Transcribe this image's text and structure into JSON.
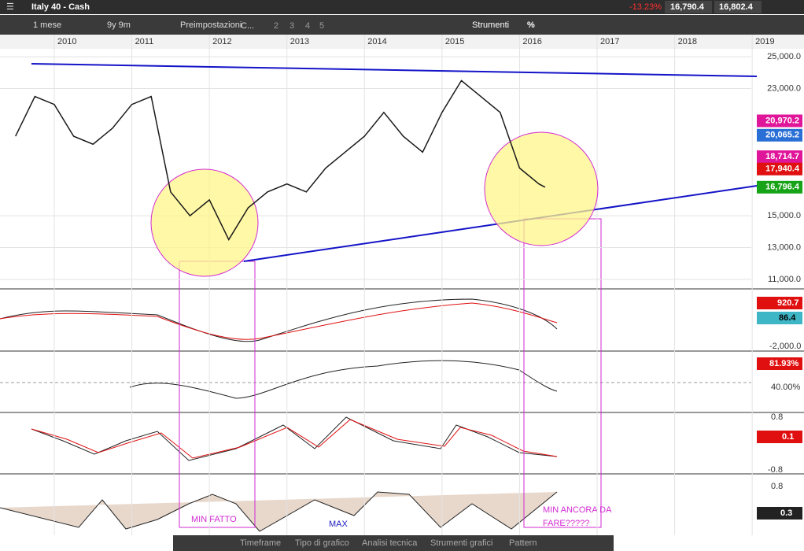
{
  "header": {
    "title": "Italy 40 - Cash",
    "change": "-13.23%",
    "bid": "16,790.4",
    "ask": "16,802.4"
  },
  "toolbar": {
    "timeframe": "1 mese",
    "range": "9y 9m",
    "presets": "Preimpostazioni",
    "chart": "C...",
    "slots": [
      "2",
      "3",
      "4",
      "5"
    ],
    "tools": "Strumenti",
    "percent": "%"
  },
  "chart_data": {
    "type": "line",
    "color": "#1a1a1a",
    "x": [
      2009.5,
      2009.75,
      2010.0,
      2010.25,
      2010.5,
      2010.75,
      2011.0,
      2011.25,
      2011.5,
      2011.75,
      2012.0,
      2012.25,
      2012.5,
      2012.75,
      2013.0,
      2013.25,
      2013.5,
      2013.75,
      2014.0,
      2014.25,
      2014.5,
      2014.75,
      2015.0,
      2015.25,
      2015.5,
      2015.75,
      2016.0,
      2016.25,
      2016.33
    ],
    "values": [
      20000,
      22500,
      22000,
      20000,
      19500,
      20500,
      22000,
      22500,
      16500,
      15000,
      16000,
      13500,
      15500,
      16500,
      17000,
      16500,
      18000,
      19000,
      20000,
      21500,
      20000,
      19000,
      21500,
      23500,
      22500,
      21500,
      18000,
      17000,
      16796.4
    ],
    "xlim": [
      2009.3,
      2019.1
    ],
    "xticks": [
      2010,
      2011,
      2012,
      2013,
      2014,
      2015,
      2016,
      2017,
      2018,
      2019
    ],
    "ylim": [
      10500,
      25500
    ],
    "yticks": [
      {
        "value": 25000,
        "label": "25,000.0"
      },
      {
        "value": 23000,
        "label": "23,000.0"
      },
      {
        "value": 15000,
        "label": "15,000.0"
      },
      {
        "value": 13000,
        "label": "13,000.0"
      },
      {
        "value": 11000,
        "label": "11,000.0"
      }
    ],
    "price_labels": [
      {
        "value": 20970.2,
        "label": "20,970.2",
        "color": "#e0169a"
      },
      {
        "value": 20065.2,
        "label": "20,065.2",
        "color": "#2a6fd6"
      },
      {
        "value": 18714.7,
        "label": "18,714.7",
        "color": "#e0169a"
      },
      {
        "value": 17940.4,
        "label": "17,940.4",
        "color": "#e01010"
      },
      {
        "value": 16796.4,
        "label": "16,796.4",
        "color": "#17a317"
      }
    ],
    "annotations": [
      "MIN FATTO",
      "MAX",
      "MIN ANCORA DA",
      "FARE?????"
    ]
  },
  "indicators": {
    "macd": [
      "920.7",
      "86.4",
      "-2,000.0"
    ],
    "rsi": [
      "81.93%",
      "40.00%"
    ],
    "stoch": [
      "0.8",
      "0.1",
      "-0.8"
    ],
    "last": [
      "0.8",
      "0.3"
    ]
  },
  "footer": [
    "Timeframe",
    "Tipo di grafico",
    "Analisi tecnica",
    "Strumenti grafici",
    "Pattern"
  ]
}
